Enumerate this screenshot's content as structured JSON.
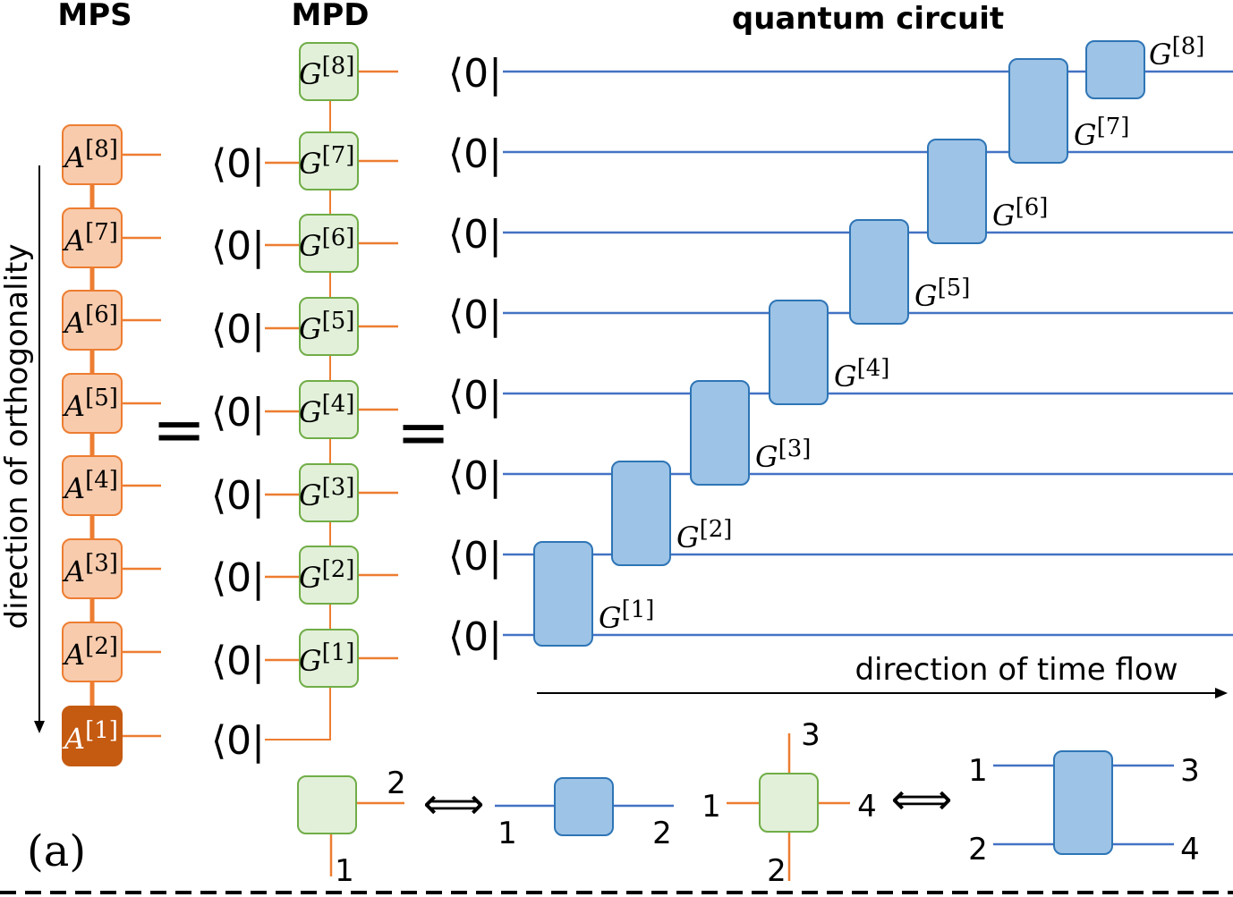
{
  "headers": {
    "mps": "MPS",
    "mpd": "MPD",
    "circuit": "quantum circuit"
  },
  "mps_symbol": "A",
  "gate_symbol": "G",
  "indices": [
    "[1]",
    "[2]",
    "[3]",
    "[4]",
    "[5]",
    "[6]",
    "[7]",
    "[8]"
  ],
  "bra": "⟨0|",
  "equals": "=",
  "axis_labels": {
    "orthogonality": "direction of orthogonality",
    "time": "direction of time flow"
  },
  "panel_label": "(a)",
  "legend": {
    "equivalent": "⟺",
    "two_leg_tensor": [
      "1",
      "2"
    ],
    "one_qubit_gate": [
      "1",
      "2"
    ],
    "four_leg_tensor": [
      "1",
      "2",
      "3",
      "4"
    ],
    "two_qubit_gate": [
      "1",
      "2",
      "3",
      "4"
    ]
  }
}
